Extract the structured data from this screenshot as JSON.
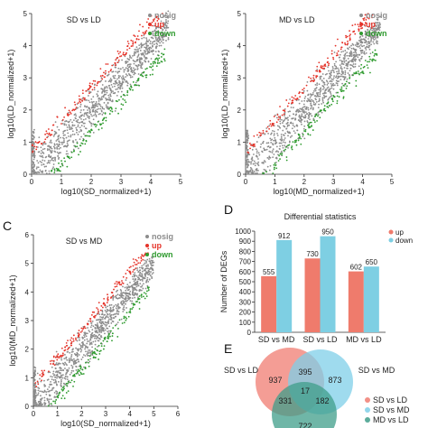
{
  "panel_letters": {
    "c": "C",
    "d": "D",
    "e": "E"
  },
  "colors": {
    "nosig": "#8c8c8c",
    "up": "#e53228",
    "down": "#2e9a2e",
    "bar_up": "#ef7b6c",
    "bar_down": "#7ecfe3",
    "venn_a": "#f07c72",
    "venn_b": "#7fcfe8",
    "venn_c": "#3f9e8a"
  },
  "chart_data": [
    {
      "type": "scatter",
      "title": "SD vs LD",
      "xlabel": "log10(SD_normalized+1)",
      "ylabel": "log10(LD_normalized+1)",
      "xlim": [
        0,
        5
      ],
      "ylim": [
        0,
        5
      ],
      "xticks": [
        "0",
        "1",
        "2",
        "3",
        "4",
        "5"
      ],
      "yticks": [
        "0",
        "1",
        "2",
        "3",
        "4",
        "5"
      ],
      "legend": [
        "nosig",
        "up",
        "down"
      ],
      "legend_position": "top-right",
      "series": [
        {
          "name": "nosig",
          "x_range": [
            0,
            4.6
          ],
          "spread": 0.3
        },
        {
          "name": "up",
          "x_range": [
            0,
            4.5
          ],
          "offset": 0.55
        },
        {
          "name": "down",
          "x_range": [
            0,
            4.5
          ],
          "offset": -0.55
        }
      ]
    },
    {
      "type": "scatter",
      "title": "MD vs LD",
      "xlabel": "log10(MD_normalized+1)",
      "ylabel": "log10(LD_normalized+1)",
      "xlim": [
        0,
        5
      ],
      "ylim": [
        0,
        5
      ],
      "xticks": [
        "0",
        "1",
        "2",
        "3",
        "4",
        "5"
      ],
      "yticks": [
        "0",
        "1",
        "2",
        "3",
        "4",
        "5"
      ],
      "legend": [
        "nosig",
        "up",
        "down"
      ],
      "legend_position": "top-right",
      "series": [
        {
          "name": "nosig",
          "x_range": [
            0,
            4.6
          ],
          "spread": 0.3
        },
        {
          "name": "up",
          "x_range": [
            0,
            4.5
          ],
          "offset": 0.55
        },
        {
          "name": "down",
          "x_range": [
            0,
            4.5
          ],
          "offset": -0.55
        }
      ]
    },
    {
      "type": "scatter",
      "title": "SD vs MD",
      "xlabel": "log10(SD_normalized+1)",
      "ylabel": "log10(MD_normalized+1)",
      "xlim": [
        0,
        6
      ],
      "ylim": [
        0,
        6
      ],
      "xticks": [
        "0",
        "1",
        "2",
        "3",
        "4",
        "5",
        "6"
      ],
      "yticks": [
        "0",
        "1",
        "2",
        "3",
        "4",
        "5",
        "6"
      ],
      "legend": [
        "nosig",
        "up",
        "down"
      ],
      "legend_position": "top-right",
      "series": [
        {
          "name": "nosig",
          "x_range": [
            0,
            5.0
          ],
          "spread": 0.3
        },
        {
          "name": "up",
          "x_range": [
            0,
            4.8
          ],
          "offset": 0.55
        },
        {
          "name": "down",
          "x_range": [
            0,
            4.8
          ],
          "offset": -0.55
        }
      ]
    },
    {
      "type": "bar",
      "title": "Differential statistics",
      "ylabel": "Number of DEGs",
      "categories": [
        "SD vs MD",
        "SD vs LD",
        "MD vs LD"
      ],
      "ylim": [
        0,
        1000
      ],
      "yticks": [
        "0",
        "100",
        "200",
        "300",
        "400",
        "500",
        "600",
        "700",
        "800",
        "900",
        "1000"
      ],
      "legend_position": "top-right",
      "series": [
        {
          "name": "up",
          "values": [
            555,
            730,
            602
          ]
        },
        {
          "name": "down",
          "values": [
            912,
            950,
            650
          ]
        }
      ]
    },
    {
      "type": "venn",
      "sets": [
        "SD vs LD",
        "SD vs MD",
        "MD vs LD"
      ],
      "regions": {
        "a_only": 937,
        "b_only": 873,
        "c_only": 722,
        "ab": 395,
        "ac": 331,
        "bc": 182,
        "abc": 17
      },
      "legend": [
        "SD vs LD",
        "SD vs MD",
        "MD vs LD"
      ]
    }
  ]
}
